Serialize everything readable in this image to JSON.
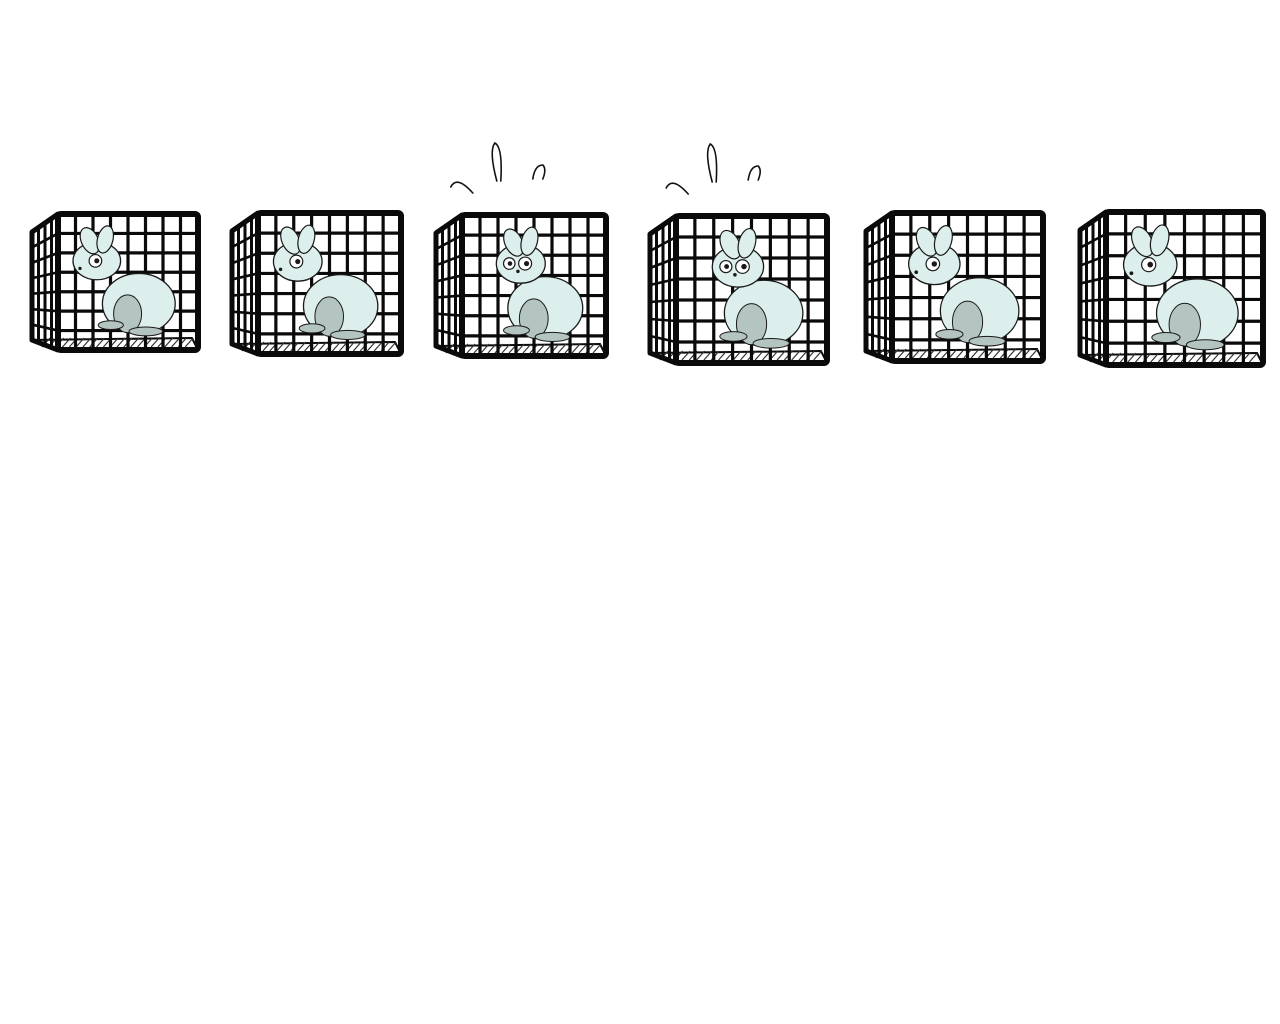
{
  "scene": {
    "background_color": "#ffffff",
    "cage_color": "#0a0a0a",
    "animal_fill_color": "#dcefed",
    "animal_shade_color": "#b4c4c1",
    "cages": [
      {
        "icon": "cage-icon",
        "animal": "rabbit-icon",
        "state": "calm",
        "facing": "left"
      },
      {
        "icon": "cage-icon",
        "animal": "rabbit-icon",
        "state": "calm",
        "facing": "left"
      },
      {
        "icon": "cage-icon",
        "animal": "rabbit-icon",
        "state": "alert",
        "facing": "front"
      },
      {
        "icon": "cage-icon",
        "animal": "rabbit-icon",
        "state": "alert",
        "facing": "front"
      },
      {
        "icon": "cage-icon",
        "animal": "rabbit-icon",
        "state": "calm",
        "facing": "left"
      },
      {
        "icon": "cage-icon",
        "animal": "rabbit-icon",
        "state": "calm",
        "facing": "left"
      }
    ]
  }
}
